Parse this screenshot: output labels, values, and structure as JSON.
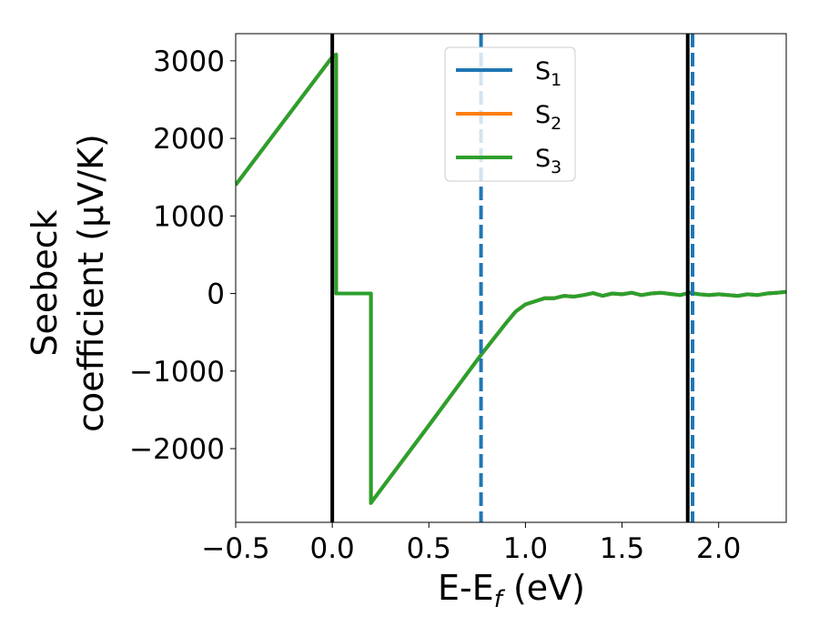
{
  "chart_data": {
    "type": "line",
    "xlabel": "E-E",
    "xlabel_sub": "f",
    "xlabel_unit": " (eV)",
    "ylabel_line1": "Seebeck",
    "ylabel_line2": "coefficient  (μV/K)",
    "xlim": [
      -0.5,
      2.35
    ],
    "ylim": [
      -2950,
      3350
    ],
    "xticks": [
      -0.5,
      0.0,
      0.5,
      1.0,
      1.5,
      2.0
    ],
    "xtick_labels": [
      "−0.5",
      "0.0",
      "0.5",
      "1.0",
      "1.5",
      "2.0"
    ],
    "yticks": [
      3000,
      2000,
      1000,
      0,
      -1000,
      -2000
    ],
    "ytick_labels": [
      "3000",
      "2000",
      "1000",
      "0",
      "−1000",
      "−2000"
    ],
    "legend_position": "top-center",
    "grid": false,
    "series": [
      {
        "name": "S",
        "sub": "1",
        "color": "#1f77b4",
        "x": [
          -0.5,
          0.0,
          0.0,
          0.02,
          0.02,
          0.19,
          0.2,
          0.2,
          0.5,
          0.77,
          0.9,
          0.95,
          1.0,
          1.05,
          1.1,
          1.15,
          1.2,
          1.25,
          1.3,
          1.35,
          1.4,
          1.45,
          1.5,
          1.55,
          1.6,
          1.65,
          1.7,
          1.75,
          1.8,
          1.85,
          1.9,
          1.95,
          2.0,
          2.05,
          2.1,
          2.15,
          2.2,
          2.25,
          2.3,
          2.35
        ],
        "y": [
          1400,
          3050,
          3050,
          3080,
          0,
          0,
          0,
          -2700,
          -1700,
          -790,
          -380,
          -230,
          -140,
          -100,
          -60,
          -60,
          -30,
          -40,
          -20,
          5,
          -30,
          0,
          -10,
          10,
          -20,
          0,
          10,
          -5,
          -20,
          10,
          -10,
          -20,
          -10,
          -20,
          -30,
          -10,
          -20,
          0,
          10,
          20
        ]
      },
      {
        "name": "S",
        "sub": "2",
        "color": "#ff7f0e",
        "x": [
          -0.5,
          0.0,
          0.0,
          0.02,
          0.02,
          0.19,
          0.2,
          0.2,
          0.5,
          0.77,
          0.9,
          0.95,
          1.0,
          1.05,
          1.1,
          1.15,
          1.2,
          1.25,
          1.3,
          1.35,
          1.4,
          1.45,
          1.5,
          1.55,
          1.6,
          1.65,
          1.7,
          1.75,
          1.8,
          1.85,
          1.9,
          1.95,
          2.0,
          2.05,
          2.1,
          2.15,
          2.2,
          2.25,
          2.3,
          2.35
        ],
        "y": [
          1400,
          3050,
          3050,
          3080,
          0,
          0,
          0,
          -2700,
          -1700,
          -790,
          -380,
          -230,
          -140,
          -100,
          -60,
          -60,
          -30,
          -40,
          -20,
          5,
          -30,
          0,
          -10,
          10,
          -20,
          0,
          10,
          -5,
          -20,
          10,
          -10,
          -20,
          -10,
          -20,
          -30,
          -10,
          -20,
          0,
          10,
          20
        ]
      },
      {
        "name": "S",
        "sub": "3",
        "color": "#2ca02c",
        "x": [
          -0.5,
          0.0,
          0.0,
          0.02,
          0.02,
          0.19,
          0.2,
          0.2,
          0.5,
          0.77,
          0.9,
          0.95,
          1.0,
          1.05,
          1.1,
          1.15,
          1.2,
          1.25,
          1.3,
          1.35,
          1.4,
          1.45,
          1.5,
          1.55,
          1.6,
          1.65,
          1.7,
          1.75,
          1.8,
          1.85,
          1.9,
          1.95,
          2.0,
          2.05,
          2.1,
          2.15,
          2.2,
          2.25,
          2.3,
          2.35
        ],
        "y": [
          1400,
          3050,
          3050,
          3080,
          0,
          0,
          0,
          -2700,
          -1700,
          -790,
          -380,
          -230,
          -140,
          -100,
          -60,
          -60,
          -30,
          -40,
          -20,
          5,
          -30,
          0,
          -10,
          10,
          -20,
          0,
          10,
          -5,
          -20,
          10,
          -10,
          -20,
          -10,
          -20,
          -30,
          -10,
          -20,
          0,
          10,
          20
        ]
      }
    ],
    "vlines": [
      {
        "x": 0.0,
        "color": "#000000",
        "style": "solid"
      },
      {
        "x": 1.84,
        "color": "#000000",
        "style": "solid"
      },
      {
        "x": 0.77,
        "color": "#1f77b4",
        "style": "dashed"
      },
      {
        "x": 1.865,
        "color": "#1f77b4",
        "style": "dashed"
      }
    ]
  }
}
